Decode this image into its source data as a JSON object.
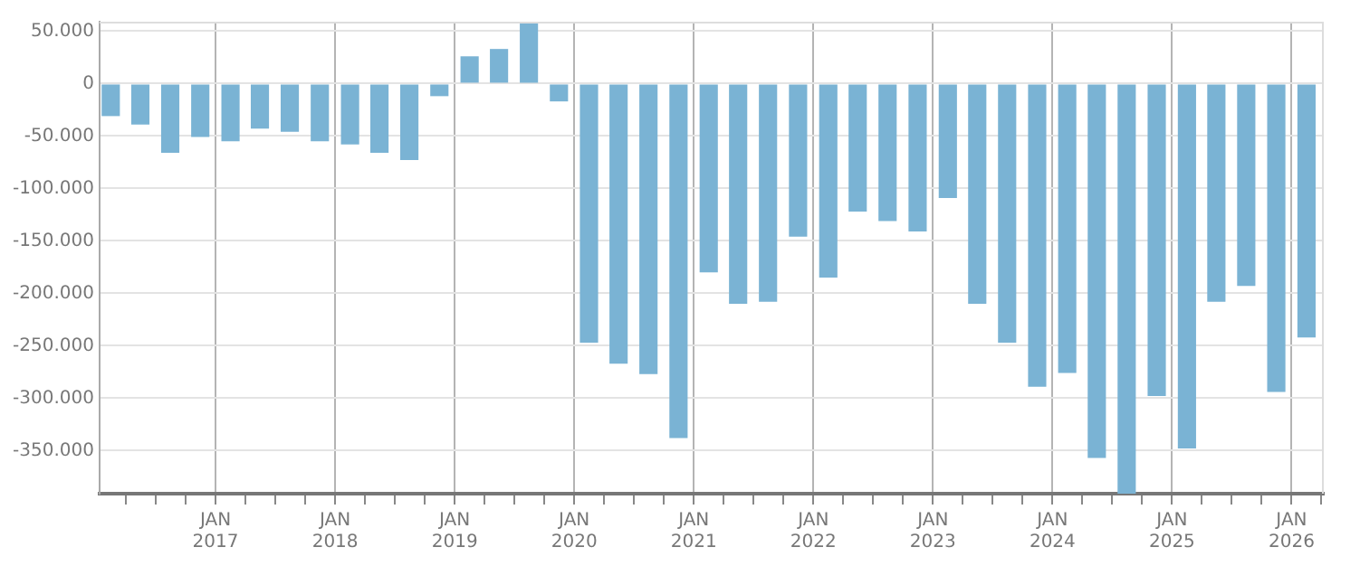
{
  "chart_data": {
    "type": "bar",
    "color": "#7ab3d4",
    "x": [
      "2016-02-15",
      "2016-05-15",
      "2016-08-15",
      "2016-11-15",
      "2017-02-15",
      "2017-05-15",
      "2017-08-15",
      "2017-11-15",
      "2018-02-15",
      "2018-05-15",
      "2018-08-15",
      "2018-11-15",
      "2019-02-15",
      "2019-05-15",
      "2019-08-15",
      "2019-11-15",
      "2020-02-15",
      "2020-05-15",
      "2020-08-15",
      "2020-11-15",
      "2021-02-15",
      "2021-05-15",
      "2021-08-15",
      "2021-11-15",
      "2022-02-15",
      "2022-05-15",
      "2022-08-15",
      "2022-11-15",
      "2023-02-15",
      "2023-05-15",
      "2023-08-15",
      "2023-11-15",
      "2024-02-15",
      "2024-05-15",
      "2024-08-15",
      "2024-11-15",
      "2025-02-15",
      "2025-05-15",
      "2025-08-15",
      "2025-11-15",
      "2026-02-15"
    ],
    "values": [
      -31000,
      -39000,
      -66000,
      -51000,
      -55000,
      -43000,
      -46000,
      -55000,
      -58000,
      -66000,
      -73000,
      -12000,
      26000,
      33000,
      58000,
      -17000,
      -247000,
      -267000,
      -277000,
      -338000,
      -180000,
      -210000,
      -208000,
      -146000,
      -185000,
      -122000,
      -131000,
      -141000,
      -109000,
      -210000,
      -247000,
      -289000,
      -276000,
      -357000,
      -391000,
      -298000,
      -348000,
      -208000,
      -193000,
      -294000,
      -242000
    ],
    "xlim": [
      "2016-01-12",
      "2026-04-08"
    ],
    "xticks": [
      {
        "value": "2016-04",
        "label": null
      },
      {
        "value": "2016-07",
        "label": null
      },
      {
        "value": "2016-10",
        "label": null
      },
      {
        "value": "2017-01",
        "label": "JAN 2017"
      },
      {
        "value": "2017-04",
        "label": null
      },
      {
        "value": "2017-07",
        "label": null
      },
      {
        "value": "2017-10",
        "label": null
      },
      {
        "value": "2018-01",
        "label": "JAN 2018"
      },
      {
        "value": "2018-04",
        "label": null
      },
      {
        "value": "2018-07",
        "label": null
      },
      {
        "value": "2018-10",
        "label": null
      },
      {
        "value": "2019-01",
        "label": "JAN 2019"
      },
      {
        "value": "2019-04",
        "label": null
      },
      {
        "value": "2019-07",
        "label": null
      },
      {
        "value": "2019-10",
        "label": null
      },
      {
        "value": "2020-01",
        "label": "JAN 2020"
      },
      {
        "value": "2020-04",
        "label": null
      },
      {
        "value": "2020-07",
        "label": null
      },
      {
        "value": "2020-10",
        "label": null
      },
      {
        "value": "2021-01",
        "label": "JAN 2021"
      },
      {
        "value": "2021-04",
        "label": null
      },
      {
        "value": "2021-07",
        "label": null
      },
      {
        "value": "2021-10",
        "label": null
      },
      {
        "value": "2022-01",
        "label": "JAN 2022"
      },
      {
        "value": "2022-04",
        "label": null
      },
      {
        "value": "2022-07",
        "label": null
      },
      {
        "value": "2022-10",
        "label": null
      },
      {
        "value": "2023-01",
        "label": "JAN 2023"
      },
      {
        "value": "2023-04",
        "label": null
      },
      {
        "value": "2023-07",
        "label": null
      },
      {
        "value": "2023-10",
        "label": null
      },
      {
        "value": "2024-01",
        "label": "JAN 2024"
      },
      {
        "value": "2024-04",
        "label": null
      },
      {
        "value": "2024-07",
        "label": null
      },
      {
        "value": "2024-10",
        "label": null
      },
      {
        "value": "2025-01",
        "label": "JAN 2025"
      },
      {
        "value": "2025-04",
        "label": null
      },
      {
        "value": "2025-07",
        "label": null
      },
      {
        "value": "2025-10",
        "label": null
      },
      {
        "value": "2026-01",
        "label": "JAN 2026"
      },
      {
        "value": "2026-04",
        "label": null
      }
    ],
    "ylim": [
      -391000,
      59000
    ],
    "yticks": [
      {
        "value": -350000,
        "label": "-350.000"
      },
      {
        "value": -300000,
        "label": "-300.000"
      },
      {
        "value": -250000,
        "label": "-250.000"
      },
      {
        "value": -200000,
        "label": "-200.000"
      },
      {
        "value": -150000,
        "label": "-150.000"
      },
      {
        "value": -100000,
        "label": "-100.000"
      },
      {
        "value": -50000,
        "label": "-50.000"
      },
      0,
      {
        "value": 50000,
        "label": "50.000"
      }
    ],
    "grid": true
  }
}
